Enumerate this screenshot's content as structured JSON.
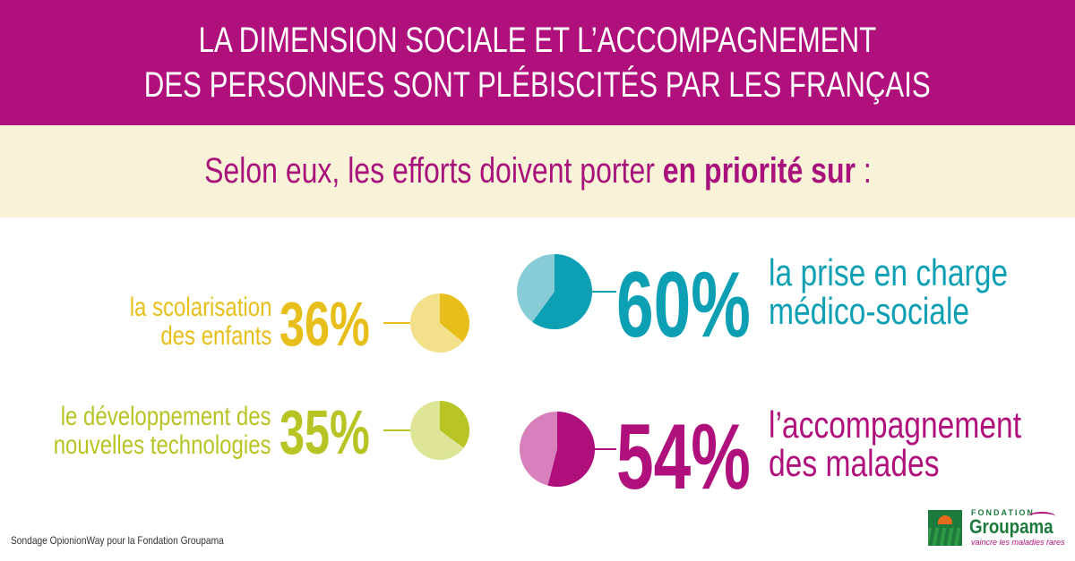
{
  "header": {
    "line1": "LA DIMENSION SOCIALE ET L’ACCOMPAGNEMENT",
    "line2": "DES PERSONNES SONT PLÉBISCITÉS PAR LES FRANÇAIS"
  },
  "subtitle": {
    "prefix": "Selon eux, les efforts doivent porter ",
    "emphasis": "en priorité sur",
    "suffix": " :"
  },
  "colors": {
    "magenta": "#b0107c",
    "cream": "#f8f2d8",
    "teal": "#0da0b5",
    "teal_light": "#88ccd8",
    "magenta_light": "#d880bc",
    "yellow": "#e8bf1a",
    "yellow_light": "#f3e08a",
    "green": "#b8c424",
    "green_light": "#dfe597"
  },
  "chart_data": {
    "type": "pie",
    "items": [
      {
        "id": "scolarisation",
        "label_lines": [
          "la scolarisation",
          "des enfants"
        ],
        "value": 36,
        "display": "36%",
        "color": "#e8bf1a",
        "color_light": "#f3e08a"
      },
      {
        "id": "technologies",
        "label_lines": [
          "le développement des",
          "nouvelles technologies"
        ],
        "value": 35,
        "display": "35%",
        "color": "#b8c424",
        "color_light": "#dfe597"
      },
      {
        "id": "medico",
        "label_lines": [
          "la prise en charge",
          "médico-sociale"
        ],
        "value": 60,
        "display": "60%",
        "color": "#0da0b5",
        "color_light": "#88ccd8"
      },
      {
        "id": "malades",
        "label_lines": [
          "l’accompagnement",
          "des malades"
        ],
        "value": 54,
        "display": "54%",
        "color": "#b0107c",
        "color_light": "#d880bc"
      }
    ]
  },
  "footer": {
    "source": "Sondage OpionionWay pour la Fondation Groupama"
  },
  "logo": {
    "fondation": "FONDATION",
    "brand": "Groupama",
    "tagline": "vaincre les maladies rares"
  }
}
